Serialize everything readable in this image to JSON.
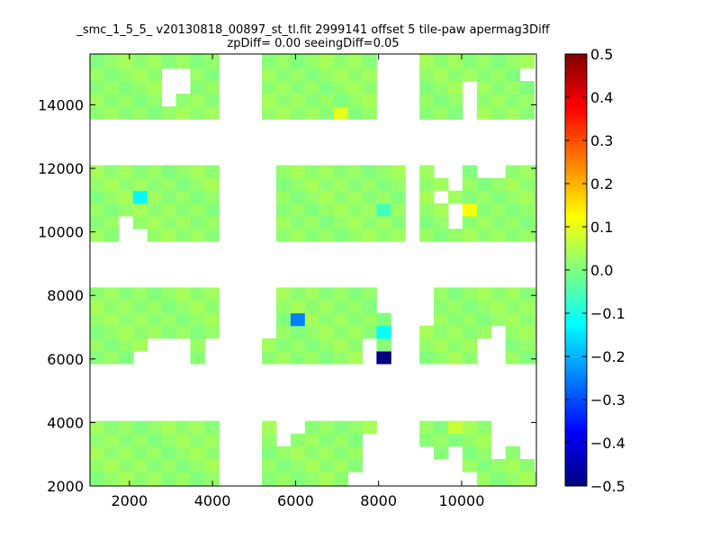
{
  "chart_data": {
    "type": "heatmap",
    "title_lines": [
      "_smc_1_5_5_ v20130818_00897_st_tl.fit 2999141 offset 5 tile-paw apermag3Diff",
      "zpDiff= 0.00 seeingDiff=0.05"
    ],
    "xlabel": "",
    "ylabel": "",
    "xlim": [
      1050,
      11800
    ],
    "ylim": [
      2000,
      15600
    ],
    "xticks": [
      2000,
      4000,
      6000,
      8000,
      10000
    ],
    "yticks": [
      2000,
      4000,
      6000,
      8000,
      10000,
      12000,
      14000
    ],
    "xtick_labels": [
      "2000",
      "4000",
      "6000",
      "8000",
      "10000"
    ],
    "ytick_labels": [
      "2000",
      "4000",
      "6000",
      "8000",
      "10000",
      "12000",
      "14000"
    ],
    "colorbar": {
      "colormap": "jet",
      "range": [
        -0.5,
        0.5
      ],
      "ticks": [
        -0.5,
        -0.4,
        -0.3,
        -0.2,
        -0.1,
        0.0,
        0.1,
        0.2,
        0.3,
        0.4,
        0.5
      ],
      "tick_labels": [
        "−0.5",
        "−0.4",
        "−0.3",
        "−0.2",
        "−0.1",
        "0.0",
        "0.1",
        "0.2",
        "0.3",
        "0.4",
        "0.5"
      ]
    },
    "grid": false,
    "bins": {
      "x_start": 1050,
      "x_step": 345,
      "y_rows": [
        {
          "y0": 2000,
          "y1": 2450
        },
        {
          "y0": 2450,
          "y1": 2850
        },
        {
          "y0": 2850,
          "y1": 3250
        },
        {
          "y0": 3250,
          "y1": 3650
        },
        {
          "y0": 3650,
          "y1": 4050
        },
        {
          "y0": 5850,
          "y1": 6250
        },
        {
          "y0": 6250,
          "y1": 6650
        },
        {
          "y0": 6650,
          "y1": 7050
        },
        {
          "y0": 7050,
          "y1": 7450
        },
        {
          "y0": 7450,
          "y1": 7850
        },
        {
          "y0": 7850,
          "y1": 8250
        },
        {
          "y0": 9700,
          "y1": 10100
        },
        {
          "y0": 10100,
          "y1": 10500
        },
        {
          "y0": 10500,
          "y1": 10900
        },
        {
          "y0": 10900,
          "y1": 11300
        },
        {
          "y0": 11300,
          "y1": 11700
        },
        {
          "y0": 11700,
          "y1": 12100
        },
        {
          "y0": 13550,
          "y1": 13950
        },
        {
          "y0": 13950,
          "y1": 14350
        },
        {
          "y0": 14350,
          "y1": 14750
        },
        {
          "y0": 14750,
          "y1": 15150
        },
        {
          "y0": 15150,
          "y1": 15600
        }
      ]
    },
    "band_cells": [
      {
        "rows": [
          17,
          18,
          19,
          20,
          21
        ],
        "cols": [
          0,
          1,
          2,
          3,
          4,
          5,
          6,
          7,
          8,
          12,
          13,
          14,
          15,
          16,
          17,
          18,
          19,
          23,
          24,
          25,
          26,
          27,
          28,
          29,
          30,
          33,
          34,
          35,
          36,
          37,
          38,
          39,
          40,
          41,
          42,
          43,
          44,
          45
        ]
      },
      {
        "rows": [
          11,
          12,
          13,
          14,
          15,
          16
        ],
        "cols": [
          0,
          1,
          2,
          3,
          4,
          5,
          6,
          7,
          8,
          13,
          14,
          15,
          16,
          17,
          18,
          19,
          20,
          21,
          23,
          24,
          25,
          26,
          27,
          28,
          29,
          30,
          31,
          34,
          35,
          36,
          37,
          38,
          39,
          40,
          41,
          42,
          43,
          44,
          45
        ]
      },
      {
        "rows": [
          5,
          6,
          7,
          8,
          9,
          10
        ],
        "cols": [
          0,
          1,
          2,
          3,
          4,
          5,
          6,
          7,
          8,
          12,
          13,
          14,
          15,
          16,
          17,
          18,
          19,
          20,
          23,
          24,
          25,
          26,
          27,
          28,
          29,
          30,
          31,
          34,
          35,
          36,
          37,
          38,
          39,
          40,
          41,
          42,
          43,
          44,
          45
        ]
      },
      {
        "rows": [
          0,
          1,
          2,
          3,
          4
        ],
        "cols": [
          0,
          1,
          2,
          3,
          4,
          5,
          6,
          7,
          8,
          12,
          13,
          14,
          15,
          16,
          17,
          18,
          19,
          20,
          23,
          24,
          25,
          26,
          27,
          28,
          29,
          30,
          31,
          34,
          35,
          36,
          37,
          38,
          39,
          40,
          41,
          42,
          43,
          44,
          45
        ]
      }
    ],
    "base_value": 0.02,
    "cell_overrides": [
      {
        "row": 14,
        "col": 37,
        "value": -0.45
      },
      {
        "row": 8,
        "col": 37,
        "value": -0.3
      },
      {
        "row": 8,
        "col": 14,
        "value": -0.25
      },
      {
        "row": 5,
        "col": 20,
        "value": -0.5
      },
      {
        "row": 7,
        "col": 20,
        "value": -0.12
      },
      {
        "row": 14,
        "col": 3,
        "value": -0.13
      },
      {
        "row": 14,
        "col": 38,
        "value": -0.07
      },
      {
        "row": 13,
        "col": 20,
        "value": -0.06
      },
      {
        "row": 13,
        "col": 26,
        "value": 0.12
      },
      {
        "row": 17,
        "col": 17,
        "value": 0.1
      },
      {
        "row": 4,
        "col": 25,
        "value": 0.07
      },
      {
        "row": 1,
        "col": 35,
        "value": -0.1
      },
      {
        "row": 1,
        "col": 36,
        "value": -0.06
      },
      {
        "row": 0,
        "col": 36,
        "value": -0.08
      },
      {
        "row": 1,
        "col": 39,
        "value": -0.05
      },
      {
        "row": 0,
        "col": 39,
        "value": -0.05
      }
    ],
    "missing_cells": [
      {
        "row": 20,
        "col": 5
      },
      {
        "row": 20,
        "col": 6
      },
      {
        "row": 19,
        "col": 5
      },
      {
        "row": 19,
        "col": 6
      },
      {
        "row": 18,
        "col": 5
      },
      {
        "row": 21,
        "col": 9
      },
      {
        "row": 21,
        "col": 10
      },
      {
        "row": 21,
        "col": 11
      },
      {
        "row": 18,
        "col": 22
      },
      {
        "row": 17,
        "col": 22
      },
      {
        "row": 21,
        "col": 22
      },
      {
        "row": 20,
        "col": 22
      },
      {
        "row": 19,
        "col": 22
      },
      {
        "row": 19,
        "col": 26
      },
      {
        "row": 18,
        "col": 26
      },
      {
        "row": 17,
        "col": 26
      },
      {
        "row": 20,
        "col": 30
      },
      {
        "row": 19,
        "col": 31
      },
      {
        "row": 18,
        "col": 31
      },
      {
        "row": 17,
        "col": 31
      },
      {
        "row": 17,
        "col": 38
      },
      {
        "row": 20,
        "col": 40
      },
      {
        "row": 21,
        "col": 44
      },
      {
        "row": 21,
        "col": 45
      },
      {
        "row": 11,
        "col": 2
      },
      {
        "row": 11,
        "col": 3
      },
      {
        "row": 12,
        "col": 2
      },
      {
        "row": 16,
        "col": 24
      },
      {
        "row": 16,
        "col": 25
      },
      {
        "row": 16,
        "col": 27
      },
      {
        "row": 16,
        "col": 28
      },
      {
        "row": 15,
        "col": 25
      },
      {
        "row": 11,
        "col": 22
      },
      {
        "row": 12,
        "col": 22
      },
      {
        "row": 13,
        "col": 22
      },
      {
        "row": 14,
        "col": 24
      },
      {
        "row": 13,
        "col": 25
      },
      {
        "row": 12,
        "col": 25
      },
      {
        "row": 16,
        "col": 36
      },
      {
        "row": 16,
        "col": 37
      },
      {
        "row": 15,
        "col": 36
      },
      {
        "row": 11,
        "col": 35
      },
      {
        "row": 12,
        "col": 35
      },
      {
        "row": 13,
        "col": 35
      },
      {
        "row": 14,
        "col": 35
      },
      {
        "row": 11,
        "col": 33
      },
      {
        "row": 12,
        "col": 33
      },
      {
        "row": 13,
        "col": 33
      },
      {
        "row": 5,
        "col": 3
      },
      {
        "row": 5,
        "col": 4
      },
      {
        "row": 5,
        "col": 5
      },
      {
        "row": 6,
        "col": 4
      },
      {
        "row": 6,
        "col": 5
      },
      {
        "row": 6,
        "col": 6
      },
      {
        "row": 5,
        "col": 6
      },
      {
        "row": 5,
        "col": 8
      },
      {
        "row": 6,
        "col": 8
      },
      {
        "row": 7,
        "col": 12
      },
      {
        "row": 8,
        "col": 12
      },
      {
        "row": 9,
        "col": 12
      },
      {
        "row": 10,
        "col": 12
      },
      {
        "row": 6,
        "col": 19
      },
      {
        "row": 5,
        "col": 19
      },
      {
        "row": 10,
        "col": 20
      },
      {
        "row": 9,
        "col": 20
      },
      {
        "row": 5,
        "col": 27
      },
      {
        "row": 6,
        "col": 27
      },
      {
        "row": 7,
        "col": 28
      },
      {
        "row": 5,
        "col": 28
      },
      {
        "row": 6,
        "col": 28
      },
      {
        "row": 9,
        "col": 23
      },
      {
        "row": 10,
        "col": 23
      },
      {
        "row": 8,
        "col": 23
      },
      {
        "row": 5,
        "col": 34
      },
      {
        "row": 6,
        "col": 34
      },
      {
        "row": 5,
        "col": 35
      },
      {
        "row": 6,
        "col": 35
      },
      {
        "row": 7,
        "col": 36
      },
      {
        "row": 5,
        "col": 36
      },
      {
        "row": 6,
        "col": 36
      },
      {
        "row": 10,
        "col": 34
      },
      {
        "row": 10,
        "col": 35
      },
      {
        "row": 9,
        "col": 35
      },
      {
        "row": 8,
        "col": 34
      },
      {
        "row": 4,
        "col": 13
      },
      {
        "row": 4,
        "col": 14
      },
      {
        "row": 3,
        "col": 13
      },
      {
        "row": 3,
        "col": 19
      },
      {
        "row": 2,
        "col": 19
      },
      {
        "row": 1,
        "col": 19
      },
      {
        "row": 0,
        "col": 18
      },
      {
        "row": 0,
        "col": 19
      },
      {
        "row": 0,
        "col": 20
      },
      {
        "row": 1,
        "col": 20
      },
      {
        "row": 2,
        "col": 20
      },
      {
        "row": 3,
        "col": 20
      },
      {
        "row": 4,
        "col": 20
      },
      {
        "row": 2,
        "col": 23
      },
      {
        "row": 1,
        "col": 23
      },
      {
        "row": 0,
        "col": 23
      },
      {
        "row": 0,
        "col": 24
      },
      {
        "row": 1,
        "col": 24
      },
      {
        "row": 0,
        "col": 25
      },
      {
        "row": 1,
        "col": 25
      },
      {
        "row": 2,
        "col": 25
      },
      {
        "row": 0,
        "col": 26
      },
      {
        "row": 4,
        "col": 28
      },
      {
        "row": 3,
        "col": 28
      },
      {
        "row": 2,
        "col": 28
      },
      {
        "row": 4,
        "col": 29
      },
      {
        "row": 3,
        "col": 29
      },
      {
        "row": 4,
        "col": 30
      },
      {
        "row": 3,
        "col": 30
      },
      {
        "row": 2,
        "col": 30
      },
      {
        "row": 4,
        "col": 31
      },
      {
        "row": 3,
        "col": 31
      },
      {
        "row": 2,
        "col": 31
      },
      {
        "row": 1,
        "col": 31
      },
      {
        "row": 4,
        "col": 34
      },
      {
        "row": 3,
        "col": 34
      },
      {
        "row": 2,
        "col": 34
      },
      {
        "row": 1,
        "col": 34
      },
      {
        "row": 4,
        "col": 35
      },
      {
        "row": 3,
        "col": 35
      },
      {
        "row": 2,
        "col": 35
      },
      {
        "row": 4,
        "col": 36
      },
      {
        "row": 3,
        "col": 36
      },
      {
        "row": 2,
        "col": 36
      },
      {
        "row": 4,
        "col": 37
      },
      {
        "row": 3,
        "col": 37
      },
      {
        "row": 2,
        "col": 37
      },
      {
        "row": 1,
        "col": 37
      },
      {
        "row": 0,
        "col": 37
      },
      {
        "row": 4,
        "col": 38
      },
      {
        "row": 3,
        "col": 38
      },
      {
        "row": 2,
        "col": 38
      },
      {
        "row": 1,
        "col": 38
      },
      {
        "row": 0,
        "col": 38
      },
      {
        "row": 4,
        "col": 39
      },
      {
        "row": 3,
        "col": 39
      },
      {
        "row": 2,
        "col": 39
      },
      {
        "row": 4,
        "col": 40
      },
      {
        "row": 3,
        "col": 40
      }
    ]
  }
}
